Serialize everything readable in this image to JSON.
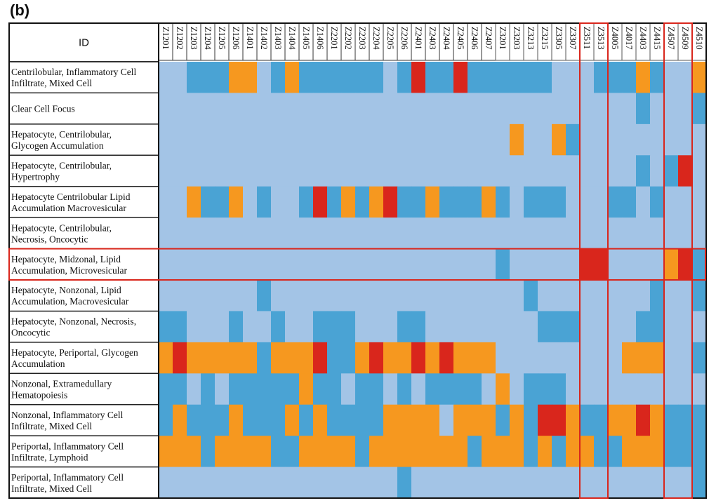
{
  "panel_label": "(b)",
  "chart_data": {
    "type": "heatmap",
    "row_header": "ID",
    "legend": {
      "0": "#a3c4e6",
      "1": "#4aa3d4",
      "2": "#f6981f",
      "3": "#d9261c"
    },
    "highlight_color": "#d9261c",
    "highlight_rows": [
      "Hepatocyte, Midzonal, Lipid Accumulation, Microvesicular"
    ],
    "highlight_columns": [
      [
        "Z3511",
        "Z3513"
      ],
      [
        "Z4507",
        "Z4509"
      ]
    ],
    "columns": [
      "Z1201",
      "Z1202",
      "Z1203",
      "Z1204",
      "Z1205",
      "Z1206",
      "Z1401",
      "Z1402",
      "Z1403",
      "Z1404",
      "Z1405",
      "Z1406",
      "Z2201",
      "Z2202",
      "Z2203",
      "Z2204",
      "Z2205",
      "Z2206",
      "Z2401",
      "Z2403",
      "Z2404",
      "Z2405",
      "Z2406",
      "Z2407",
      "Z3201",
      "Z3203",
      "Z3213",
      "Z3215",
      "Z3305",
      "Z3307",
      "Z3511",
      "Z3513",
      "Z4005",
      "Z4017",
      "Z4403",
      "Z4415",
      "Z4507",
      "Z4509",
      "Z4510"
    ],
    "rows": [
      {
        "label": [
          "Centrilobular, Inflammatory Cell",
          "Infiltrate, Mixed Cell"
        ],
        "values": [
          0,
          0,
          1,
          1,
          1,
          2,
          2,
          0,
          1,
          2,
          1,
          1,
          1,
          1,
          1,
          1,
          0,
          1,
          3,
          1,
          1,
          3,
          1,
          1,
          1,
          1,
          1,
          1,
          0,
          0,
          0,
          1,
          1,
          1,
          2,
          1,
          0,
          0,
          2
        ]
      },
      {
        "label": [
          "Clear Cell Focus"
        ],
        "values": [
          0,
          0,
          0,
          0,
          0,
          0,
          0,
          0,
          0,
          0,
          0,
          0,
          0,
          0,
          0,
          0,
          0,
          0,
          0,
          0,
          0,
          0,
          0,
          0,
          0,
          0,
          0,
          0,
          0,
          0,
          0,
          0,
          0,
          0,
          1,
          0,
          0,
          0,
          1
        ]
      },
      {
        "label": [
          "Hepatocyte, Centrilobular,",
          "Glycogen Accumulation"
        ],
        "values": [
          0,
          0,
          0,
          0,
          0,
          0,
          0,
          0,
          0,
          0,
          0,
          0,
          0,
          0,
          0,
          0,
          0,
          0,
          0,
          0,
          0,
          0,
          0,
          0,
          0,
          2,
          0,
          0,
          2,
          1,
          0,
          0,
          0,
          0,
          0,
          0,
          0,
          0,
          0
        ]
      },
      {
        "label": [
          "Hepatocyte, Centrilobular,",
          "Hypertrophy"
        ],
        "values": [
          0,
          0,
          0,
          0,
          0,
          0,
          0,
          0,
          0,
          0,
          0,
          0,
          0,
          0,
          0,
          0,
          0,
          0,
          0,
          0,
          0,
          0,
          0,
          0,
          0,
          0,
          0,
          0,
          0,
          0,
          0,
          0,
          0,
          0,
          1,
          0,
          1,
          3,
          0
        ]
      },
      {
        "label": [
          "Hepatocyte Centrilobular Lipid",
          "Accumulation Macrovesicular"
        ],
        "values": [
          0,
          0,
          2,
          1,
          1,
          2,
          0,
          1,
          0,
          0,
          1,
          3,
          1,
          2,
          1,
          2,
          3,
          1,
          1,
          2,
          1,
          1,
          1,
          2,
          1,
          0,
          1,
          1,
          1,
          0,
          0,
          0,
          1,
          1,
          0,
          1,
          0,
          0,
          0
        ]
      },
      {
        "label": [
          "Hepatocyte, Centrilobular,",
          "Necrosis, Oncocytic"
        ],
        "values": [
          0,
          0,
          0,
          0,
          0,
          0,
          0,
          0,
          0,
          0,
          0,
          0,
          0,
          0,
          0,
          0,
          0,
          0,
          0,
          0,
          0,
          0,
          0,
          0,
          0,
          0,
          0,
          0,
          0,
          0,
          0,
          0,
          0,
          0,
          0,
          0,
          0,
          0,
          0
        ]
      },
      {
        "label": [
          "Hepatocyte, Midzonal, Lipid",
          "Accumulation, Microvesicular"
        ],
        "values": [
          0,
          0,
          0,
          0,
          0,
          0,
          0,
          0,
          0,
          0,
          0,
          0,
          0,
          0,
          0,
          0,
          0,
          0,
          0,
          0,
          0,
          0,
          0,
          0,
          1,
          0,
          0,
          0,
          0,
          0,
          3,
          3,
          0,
          0,
          0,
          0,
          2,
          3,
          1
        ]
      },
      {
        "label": [
          "Hepatocyte, Nonzonal, Lipid",
          "Accumulation, Macrovesicular"
        ],
        "values": [
          0,
          0,
          0,
          0,
          0,
          0,
          0,
          1,
          0,
          0,
          0,
          0,
          0,
          0,
          0,
          0,
          0,
          0,
          0,
          0,
          0,
          0,
          0,
          0,
          0,
          0,
          1,
          0,
          0,
          0,
          0,
          0,
          0,
          0,
          0,
          1,
          0,
          0,
          1
        ]
      },
      {
        "label": [
          "Hepatocyte, Nonzonal, Necrosis,",
          "Oncocytic"
        ],
        "values": [
          1,
          1,
          0,
          0,
          0,
          1,
          0,
          0,
          1,
          0,
          0,
          1,
          1,
          1,
          0,
          0,
          0,
          1,
          1,
          0,
          0,
          0,
          0,
          0,
          0,
          0,
          0,
          1,
          1,
          1,
          0,
          0,
          0,
          0,
          1,
          1,
          0,
          0,
          0
        ]
      },
      {
        "label": [
          "Hepatocyte, Periportal, Glycogen",
          "Accumulation"
        ],
        "values": [
          2,
          3,
          2,
          2,
          2,
          2,
          2,
          1,
          2,
          2,
          2,
          3,
          1,
          1,
          2,
          3,
          2,
          2,
          3,
          2,
          3,
          2,
          2,
          2,
          0,
          0,
          0,
          0,
          0,
          0,
          0,
          0,
          0,
          2,
          2,
          2,
          0,
          0,
          1
        ]
      },
      {
        "label": [
          "Nonzonal, Extramedullary",
          "Hematopoiesis"
        ],
        "values": [
          1,
          1,
          0,
          1,
          0,
          1,
          1,
          1,
          1,
          1,
          2,
          1,
          1,
          0,
          1,
          1,
          0,
          1,
          0,
          1,
          1,
          1,
          1,
          0,
          2,
          0,
          1,
          1,
          1,
          0,
          0,
          0,
          0,
          0,
          0,
          0,
          0,
          0,
          0
        ]
      },
      {
        "label": [
          "Nonzonal, Inflammatory Cell",
          "Infiltrate, Mixed Cell"
        ],
        "values": [
          1,
          2,
          1,
          1,
          1,
          2,
          1,
          1,
          1,
          2,
          1,
          2,
          1,
          1,
          1,
          1,
          2,
          2,
          2,
          2,
          0,
          2,
          2,
          2,
          1,
          2,
          1,
          3,
          3,
          2,
          1,
          1,
          2,
          2,
          3,
          2,
          1,
          1,
          1
        ]
      },
      {
        "label": [
          "Periportal, Inflammatory Cell",
          "Infiltrate, Lymphoid"
        ],
        "values": [
          2,
          2,
          2,
          1,
          2,
          2,
          2,
          2,
          1,
          1,
          2,
          2,
          2,
          2,
          1,
          2,
          2,
          2,
          2,
          2,
          2,
          2,
          1,
          2,
          2,
          2,
          1,
          2,
          1,
          2,
          2,
          1,
          1,
          2,
          2,
          2,
          1,
          1,
          1
        ]
      },
      {
        "label": [
          "Periportal, Inflammatory Cell",
          "Infiltrate, Mixed Cell"
        ],
        "values": [
          0,
          0,
          0,
          0,
          0,
          0,
          0,
          0,
          0,
          0,
          0,
          0,
          0,
          0,
          0,
          0,
          0,
          1,
          0,
          0,
          0,
          0,
          0,
          0,
          0,
          0,
          0,
          0,
          0,
          0,
          0,
          0,
          0,
          0,
          0,
          0,
          0,
          0,
          1
        ]
      }
    ]
  }
}
